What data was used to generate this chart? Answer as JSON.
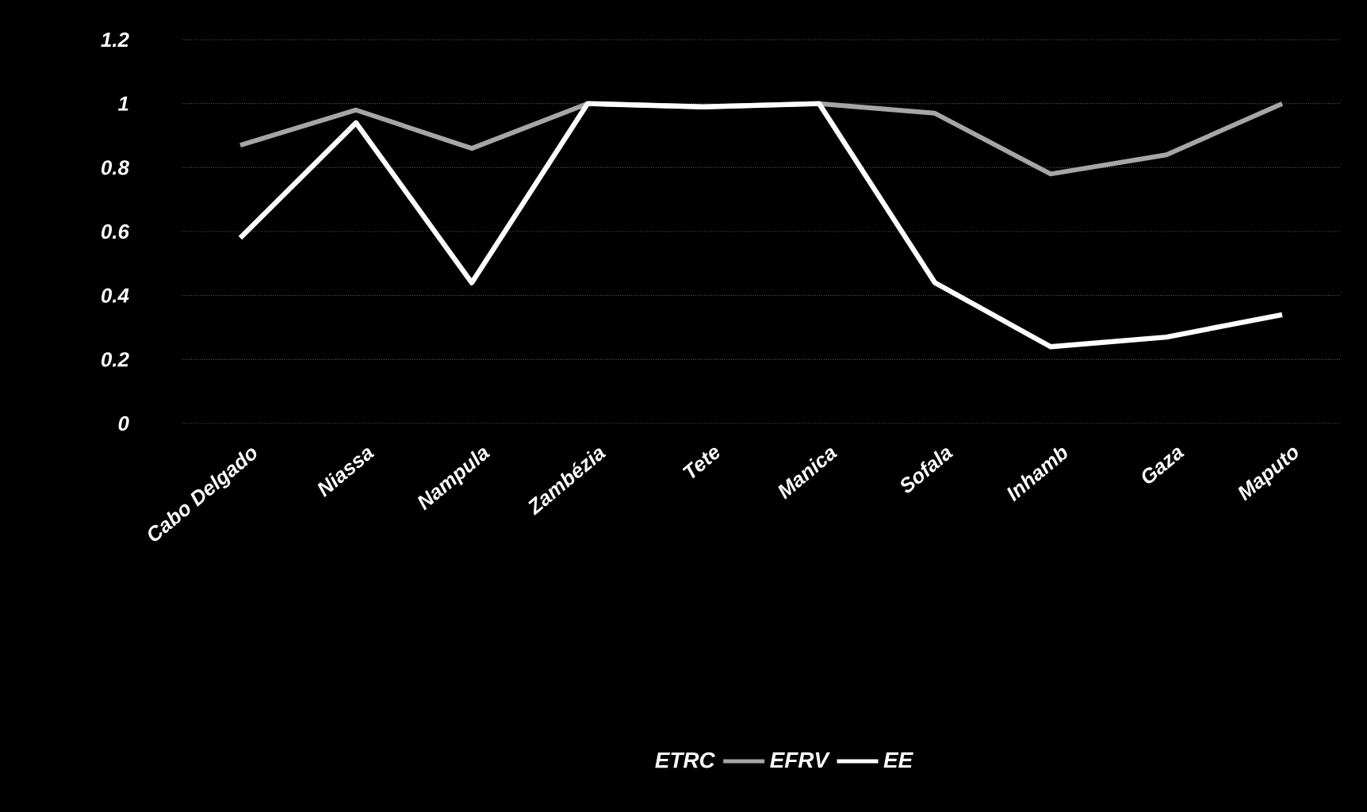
{
  "chart_data": {
    "type": "line",
    "categories": [
      "Cabo Delgado",
      "Niassa",
      "Nampula",
      "Zambézia",
      "Tete",
      "Manica",
      "Sofala",
      "Inhamb",
      "Gaza",
      "Maputo"
    ],
    "series": [
      {
        "name": "ETRC",
        "values": [
          null,
          null,
          null,
          null,
          null,
          null,
          null,
          null,
          null,
          null
        ]
      },
      {
        "name": "EFRV",
        "color": "#a6a6a6",
        "values": [
          0.87,
          0.98,
          0.86,
          1.0,
          0.99,
          1.0,
          0.97,
          0.78,
          0.84,
          1.0
        ]
      },
      {
        "name": "EE",
        "color": "#ffffff",
        "values": [
          0.58,
          0.94,
          0.44,
          1.0,
          0.99,
          1.0,
          0.44,
          0.24,
          0.27,
          0.34
        ]
      }
    ],
    "ylim": [
      0,
      1.2
    ],
    "yticks": [
      0,
      0.2,
      0.4,
      0.6,
      0.8,
      1,
      1.2
    ],
    "grid": "y",
    "legend": "bottom"
  }
}
